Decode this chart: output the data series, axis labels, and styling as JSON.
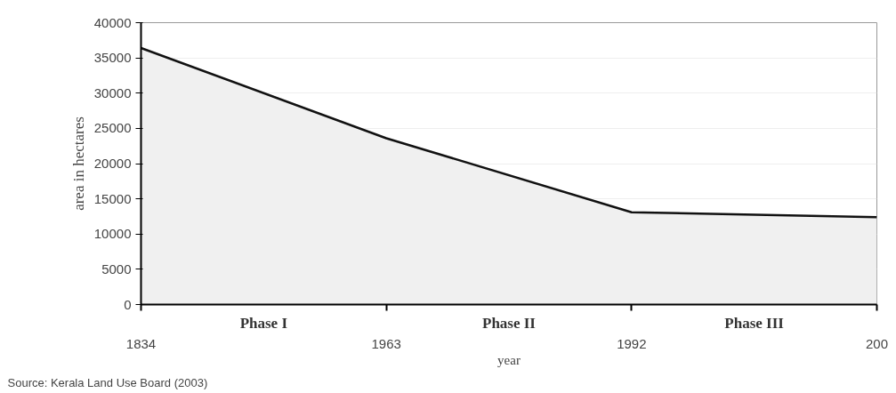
{
  "chart_data": {
    "type": "area",
    "categories": [
      "1834",
      "1963",
      "1992",
      "200"
    ],
    "series": [
      {
        "color": "#f0f0f0",
        "values": [
          36400,
          23600,
          13100,
          12400
        ]
      }
    ],
    "ylim": [
      0,
      40000
    ],
    "yticks": [
      0,
      5000,
      10000,
      15000,
      20000,
      25000,
      30000,
      35000,
      40000
    ],
    "ylabel": "area in hectares",
    "xlabel": "year",
    "grid": "y",
    "annotations": [
      "Phase I",
      "Phase II",
      "Phase III",
      "Source: Kerala Land Use  Board (2003)"
    ]
  }
}
